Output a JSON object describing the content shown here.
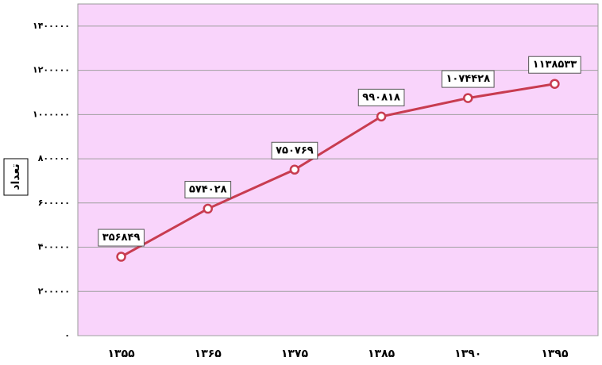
{
  "chart_data": {
    "type": "line",
    "y_label": "تعداد",
    "categories": [
      "۱۳۵۵",
      "۱۳۶۵",
      "۱۳۷۵",
      "۱۳۸۵",
      "۱۳۹۰",
      "۱۳۹۵"
    ],
    "series": [
      {
        "color": "#c83c50",
        "values": [
          356849,
          574028,
          750769,
          990818,
          1074428,
          1138533
        ],
        "value_labels": [
          "۳۵۶۸۴۹",
          "۵۷۴۰۲۸",
          "۷۵۰۷۶۹",
          "۹۹۰۸۱۸",
          "۱۰۷۴۴۲۸",
          "۱۱۳۸۵۳۳"
        ]
      }
    ],
    "ylim": [
      0,
      1500000
    ],
    "yticks": [
      {
        "value": 0,
        "label": "۰"
      },
      {
        "value": 200000,
        "label": "۲۰۰۰۰۰"
      },
      {
        "value": 400000,
        "label": "۴۰۰۰۰۰"
      },
      {
        "value": 600000,
        "label": "۶۰۰۰۰۰"
      },
      {
        "value": 800000,
        "label": "۸۰۰۰۰۰"
      },
      {
        "value": 1000000,
        "label": "۱۰۰۰۰۰۰"
      },
      {
        "value": 1200000,
        "label": "۱۲۰۰۰۰۰"
      },
      {
        "value": 1400000,
        "label": "۱۴۰۰۰۰۰"
      }
    ],
    "grid": true,
    "background": "#f9d4fb"
  }
}
